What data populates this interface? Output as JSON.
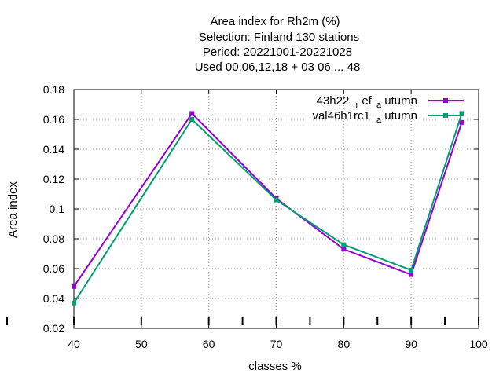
{
  "chart_data": {
    "type": "line",
    "title_lines": [
      "Area index  for Rh2m (%)",
      "Selection: Finland    130 stations",
      "Period: 20221001-20221028",
      "Used  00,06,12,18  + 03 06 ... 48"
    ],
    "xlabel": "classes %",
    "ylabel": "Area index",
    "xlim": [
      40,
      100
    ],
    "ylim": [
      0.02,
      0.18
    ],
    "xticks": [
      40,
      50,
      60,
      70,
      80,
      90,
      100
    ],
    "yticks": [
      0.02,
      0.04,
      0.06,
      0.08,
      0.1,
      0.12,
      0.14,
      0.16,
      0.18
    ],
    "ytick_labels": [
      "0.02",
      "0.04",
      "0.06",
      "0.08",
      "0.1",
      "0.12",
      "0.14",
      "0.16",
      "0.18"
    ],
    "xtick_labels": [
      "40",
      "50",
      "60",
      "70",
      "80",
      "90",
      "100"
    ],
    "grid": true,
    "legend_position": "top-right",
    "extra_ticks_x": [
      40,
      50,
      60,
      65,
      70,
      75,
      80,
      85,
      90,
      95,
      100
    ],
    "series": [
      {
        "name_main": "43h22",
        "name_sub1": "r",
        "name_mid": "ef",
        "name_sub2": "a",
        "name_end": "utumn",
        "color": "#9400d3",
        "x": [
          40,
          57.5,
          70,
          80,
          90,
          97.5
        ],
        "y": [
          0.048,
          0.164,
          0.107,
          0.073,
          0.056,
          0.158
        ]
      },
      {
        "name_main": "val46h1rc1",
        "name_sub1": "",
        "name_mid": "",
        "name_sub2": "a",
        "name_end": "utumn",
        "color": "#009e73",
        "x": [
          40,
          57.5,
          70,
          80,
          90,
          97.5
        ],
        "y": [
          0.037,
          0.16,
          0.106,
          0.076,
          0.059,
          0.164
        ]
      }
    ]
  }
}
